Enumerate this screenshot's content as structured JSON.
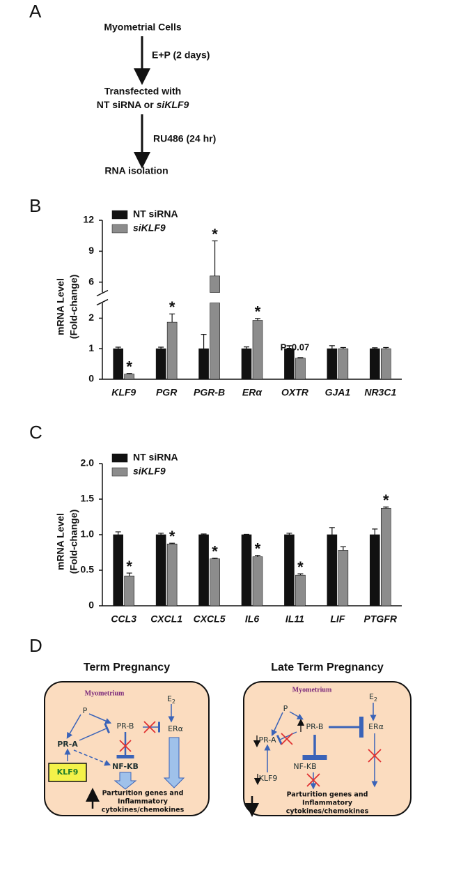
{
  "panel_a": {
    "label": "A",
    "step1": "Myometrial Cells",
    "treat1": "E+P (2 days)",
    "step2_line1": "Transfected with",
    "step2_line2": "NT siRNA or ",
    "step2_gene": "siKLF9",
    "treat2": "RU486 (24 hr)",
    "step3": "RNA isolation"
  },
  "panel_b_label": "B",
  "panel_c_label": "C",
  "chart_data": [
    {
      "type": "bar",
      "y_label": [
        "mRNA Level",
        "(Fold-change)"
      ],
      "categories": [
        "KLF9",
        "PGR",
        "PGR-B",
        "ERα",
        "OXTR",
        "GJA1",
        "NR3C1"
      ],
      "series": [
        {
          "name": "NT siRNA",
          "color": "#111111",
          "values": [
            1,
            1,
            1,
            1,
            1,
            1,
            1
          ],
          "errors": [
            0.05,
            0.05,
            0.47,
            0.06,
            0.1,
            0.1,
            0.03
          ],
          "annotations": [
            null,
            null,
            null,
            null,
            null,
            null,
            null
          ]
        },
        {
          "name": "siKLF9",
          "color": "#8c8c8c",
          "values": [
            0.17,
            1.87,
            6.6,
            1.93,
            0.69,
            1,
            1
          ],
          "errors": [
            0.02,
            0.27,
            3.4,
            0.06,
            0.02,
            0.04,
            0.04
          ],
          "annotations": [
            "*",
            "*",
            "*",
            "*",
            "P=0.07",
            null,
            null
          ]
        }
      ],
      "ylim": [
        0,
        12
      ],
      "ybreak": [
        2.5,
        5
      ],
      "yticks": [
        0,
        1,
        2,
        6,
        9,
        12
      ],
      "legend": "upper left"
    },
    {
      "type": "bar",
      "y_label": [
        "mRNA Level",
        "(Fold-change)"
      ],
      "categories": [
        "CCL3",
        "CXCL1",
        "CXCL5",
        "IL6",
        "IL11",
        "LIF",
        "PTGFR"
      ],
      "series": [
        {
          "name": "NT siRNA",
          "color": "#111111",
          "values": [
            1,
            1,
            1,
            1,
            1,
            1,
            1
          ],
          "errors": [
            0.04,
            0.02,
            0.01,
            0.005,
            0.02,
            0.1,
            0.08
          ],
          "annotations": [
            null,
            null,
            null,
            null,
            null,
            null,
            null
          ]
        },
        {
          "name": "siKLF9",
          "color": "#8c8c8c",
          "values": [
            0.42,
            0.87,
            0.66,
            0.69,
            0.43,
            0.78,
            1.37
          ],
          "errors": [
            0.04,
            0.01,
            0.01,
            0.02,
            0.02,
            0.05,
            0.02
          ],
          "annotations": [
            "*",
            "*",
            "*",
            "*",
            "*",
            null,
            "*"
          ]
        }
      ],
      "ylim": [
        0,
        2
      ],
      "yticks": [
        0,
        0.5,
        {
          "value": 1,
          "label": "1.0"
        },
        1.5,
        {
          "value": 2,
          "label": "2.0"
        }
      ],
      "legend": "upper left"
    }
  ],
  "panel_d": {
    "label": "D",
    "left": {
      "title": "Term Pregnancy",
      "region": "Myometrium",
      "e": "E",
      "e_sub": "2",
      "p": "P",
      "prb": "PR-B",
      "era": "ERα",
      "pra": "PR-A",
      "nfkb": "NF-KB",
      "klf9": "KLF9",
      "footer": [
        "Parturition genes and",
        "Inflammatory",
        "cytokines/chemokines"
      ]
    },
    "right": {
      "title": "Late Term Pregnancy",
      "region": "Myometrium",
      "e": "E",
      "e_sub": "2",
      "p": "P",
      "prb": "PR-B",
      "era": "ERα",
      "pra": "PR-A",
      "klf9": "KLF9",
      "nfkb": "NF-KB",
      "footer": [
        "Parturition genes and",
        "Inflammatory",
        "cytokines/chemokines"
      ]
    }
  }
}
